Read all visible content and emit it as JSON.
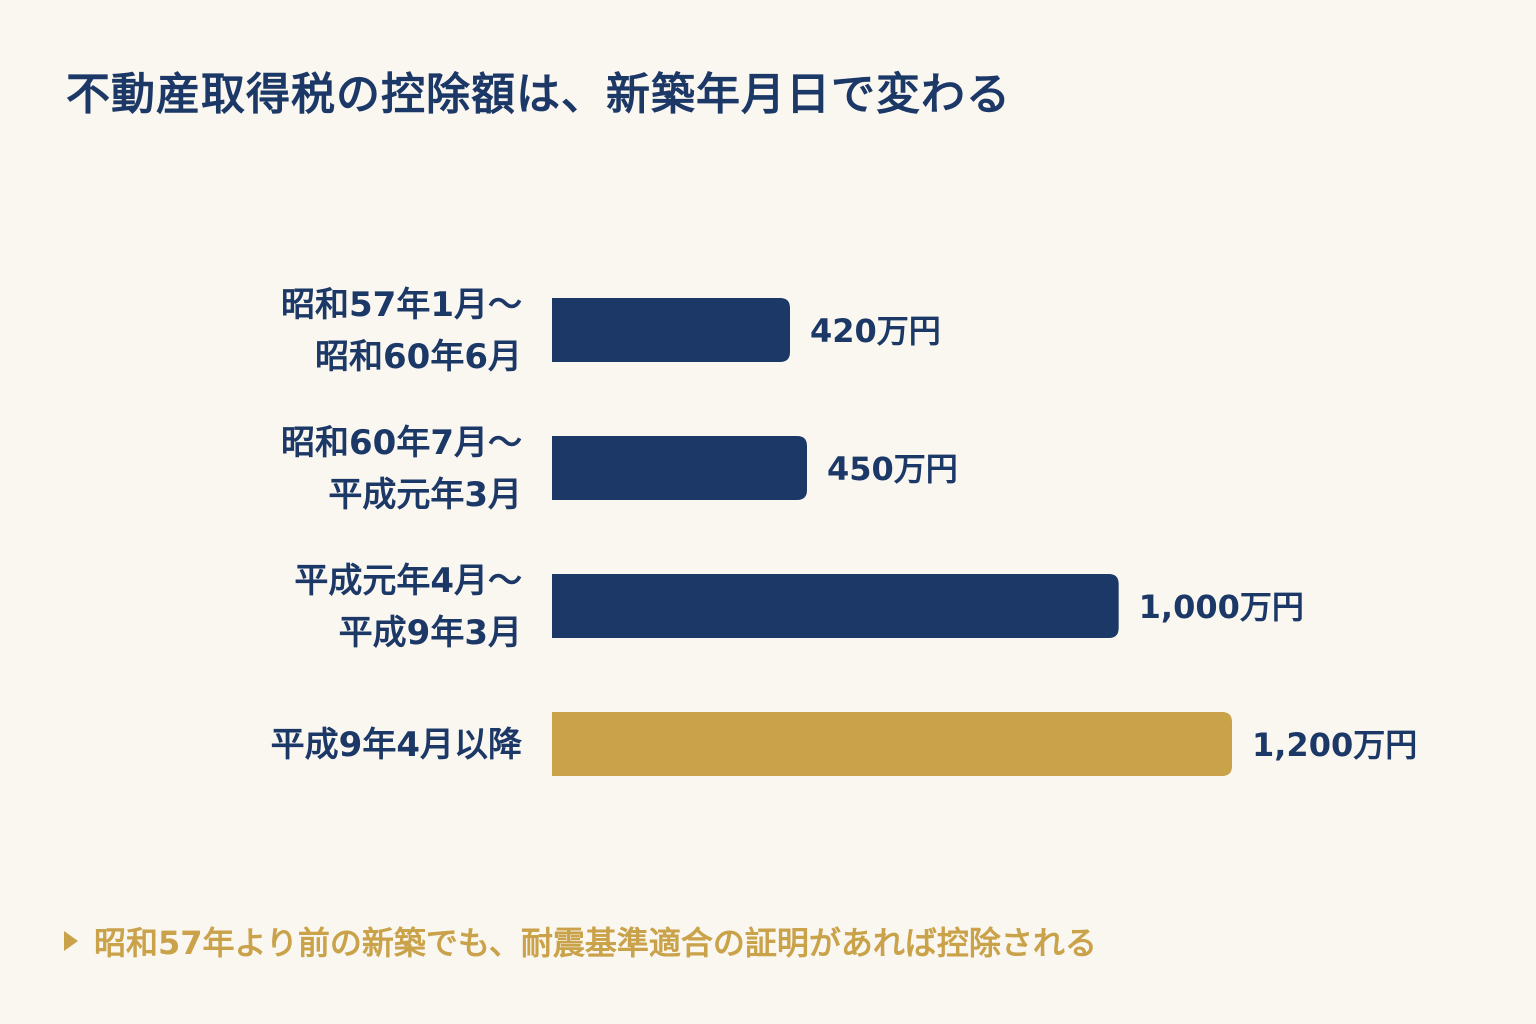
{
  "title": "不動産取得税の控除額は、新築年月日で変わる",
  "note": "昭和57年より前の新築でも、耐震基準適合の証明があれば控除される",
  "colors": {
    "navy": "#1c3866",
    "gold": "#c9a24a",
    "background": "#faf7f1"
  },
  "chart_data": {
    "type": "bar",
    "orientation": "horizontal",
    "title": "不動産取得税の控除額は、新築年月日で変わる",
    "categories": [
      [
        "昭和57年1月〜",
        "昭和60年6月"
      ],
      [
        "昭和60年7月〜",
        "平成元年3月"
      ],
      [
        "平成元年4月〜",
        "平成9年3月"
      ],
      [
        "平成9年4月以降"
      ]
    ],
    "values": [
      420,
      450,
      1000,
      1200
    ],
    "value_labels": [
      "420万円",
      "450万円",
      "1,000万円",
      "1,200万円"
    ],
    "unit": "万円",
    "highlight_index": 3,
    "xlim": [
      0,
      1200
    ],
    "grid": false,
    "legend": "none"
  }
}
